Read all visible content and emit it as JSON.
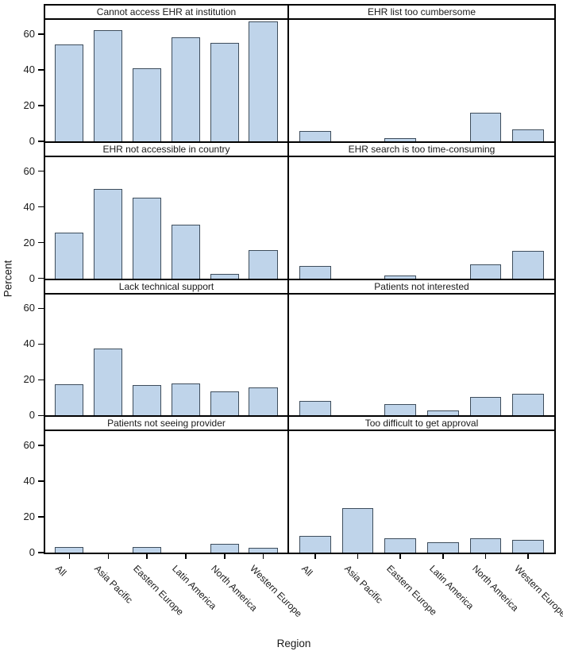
{
  "chart_data": {
    "type": "bar",
    "layout": "small-multiples 4 rows x 2 columns, shared axes",
    "categories": [
      "All",
      "Asia Pacific",
      "Eastern Europe",
      "Latin America",
      "North America",
      "Western Europe"
    ],
    "xlabel": "Region",
    "ylabel": "Percent",
    "ylim": [
      0,
      68
    ],
    "yticks": [
      0,
      20,
      40,
      60
    ],
    "grid": false,
    "legend": "none",
    "panels": [
      {
        "title": "Cannot access EHR at institution",
        "values": [
          54,
          62,
          41,
          58,
          55,
          67
        ]
      },
      {
        "title": "EHR list too cumbersome",
        "values": [
          5.5,
          0,
          1.5,
          0,
          16,
          6.5
        ]
      },
      {
        "title": "EHR not accessible in country",
        "values": [
          25.5,
          50,
          45,
          30,
          2.5,
          16
        ]
      },
      {
        "title": "EHR search is too time-consuming",
        "values": [
          7,
          0,
          1.5,
          0,
          8,
          15.5
        ]
      },
      {
        "title": "Lack technical support",
        "values": [
          17.5,
          37.5,
          17,
          18,
          13.5,
          15.5
        ]
      },
      {
        "title": "Patients not interested",
        "values": [
          8,
          0,
          6.5,
          3,
          10.5,
          12
        ]
      },
      {
        "title": "Patients not seeing provider",
        "values": [
          3,
          0,
          3,
          0,
          5,
          2.5
        ]
      },
      {
        "title": "Too difficult to get approval",
        "values": [
          9.5,
          25,
          8,
          6,
          8,
          7
        ]
      }
    ],
    "colors": {
      "bar_fill": "#bfd4ea",
      "bar_border": "#3e4d5c",
      "axis_line": "#000000",
      "text": "#1a1a1a",
      "background": "#ffffff"
    }
  }
}
